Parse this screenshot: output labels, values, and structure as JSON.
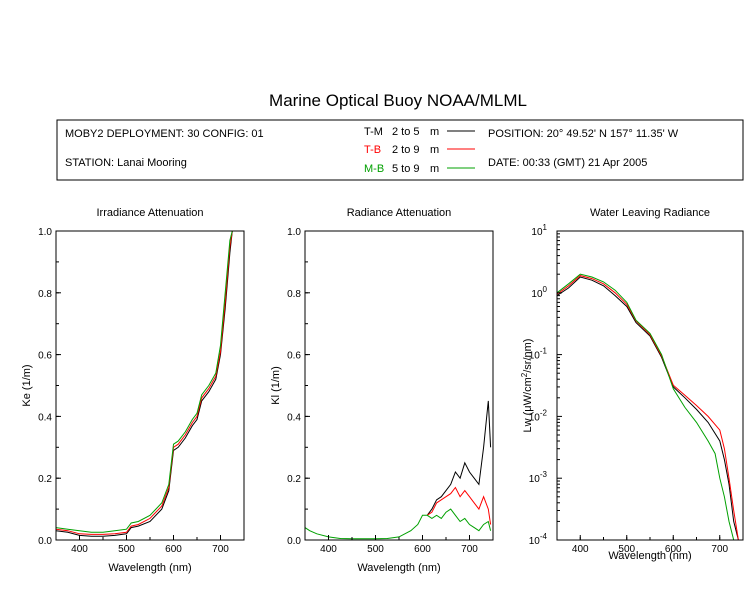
{
  "page": {
    "title": "Marine Optical Buoy NOAA/MLML"
  },
  "header": {
    "deployment": "MOBY2 DEPLOYMENT: 30 CONFIG: 01",
    "station": "STATION: Lanai Mooring",
    "position": "POSITION: 20° 49.52' N   157° 11.35' W",
    "date": "DATE: 00:33 (GMT) 21 Apr 2005",
    "depth_legend": [
      {
        "code": "T-M",
        "range": "2 to 5",
        "unit": "m",
        "color": "#000000"
      },
      {
        "code": "T-B",
        "range": "2 to 9",
        "unit": "m",
        "color": "#ff0000"
      },
      {
        "code": "M-B",
        "range": "5 to 9",
        "unit": "m",
        "color": "#00a000"
      }
    ]
  },
  "chart_data": [
    {
      "type": "line",
      "title": "Irradiance Attenuation",
      "xlabel": "Wavelength (nm)",
      "ylabel": "Ke  (1/m)",
      "xlim": [
        350,
        750
      ],
      "ylim": [
        0,
        1.0
      ],
      "xticks": [
        "400",
        "500",
        "600",
        "700"
      ],
      "yticks": [
        "0.0",
        "0.2",
        "0.4",
        "0.6",
        "0.8",
        "1.0"
      ],
      "series": [
        {
          "name": "T-M",
          "color": "#000000",
          "x": [
            350,
            375,
            400,
            425,
            450,
            475,
            500,
            510,
            525,
            550,
            575,
            590,
            600,
            610,
            625,
            640,
            650,
            660,
            675,
            690,
            700,
            710,
            720,
            725
          ],
          "y": [
            0.03,
            0.025,
            0.015,
            0.012,
            0.012,
            0.015,
            0.02,
            0.04,
            0.045,
            0.06,
            0.1,
            0.16,
            0.29,
            0.3,
            0.33,
            0.37,
            0.39,
            0.45,
            0.48,
            0.52,
            0.6,
            0.75,
            0.93,
            1.0
          ]
        },
        {
          "name": "T-B",
          "color": "#ff0000",
          "x": [
            350,
            375,
            400,
            425,
            450,
            475,
            500,
            510,
            525,
            550,
            575,
            590,
            600,
            610,
            625,
            640,
            650,
            660,
            675,
            690,
            700,
            710,
            720,
            725
          ],
          "y": [
            0.035,
            0.03,
            0.02,
            0.018,
            0.018,
            0.02,
            0.025,
            0.045,
            0.05,
            0.07,
            0.11,
            0.17,
            0.3,
            0.31,
            0.34,
            0.38,
            0.4,
            0.46,
            0.49,
            0.53,
            0.61,
            0.77,
            0.95,
            1.0
          ]
        },
        {
          "name": "M-B",
          "color": "#00a000",
          "x": [
            350,
            375,
            400,
            425,
            450,
            475,
            500,
            510,
            525,
            550,
            575,
            590,
            600,
            610,
            625,
            640,
            650,
            660,
            675,
            690,
            700,
            710,
            720,
            725
          ],
          "y": [
            0.04,
            0.035,
            0.03,
            0.025,
            0.025,
            0.03,
            0.035,
            0.055,
            0.06,
            0.08,
            0.12,
            0.18,
            0.31,
            0.32,
            0.35,
            0.39,
            0.41,
            0.47,
            0.5,
            0.54,
            0.63,
            0.8,
            0.97,
            1.0
          ]
        }
      ]
    },
    {
      "type": "line",
      "title": "Radiance Attenuation",
      "xlabel": "Wavelength (nm)",
      "ylabel": "Kl  (1/m)",
      "xlim": [
        350,
        750
      ],
      "ylim": [
        0,
        1.0
      ],
      "xticks": [
        "400",
        "500",
        "600",
        "700"
      ],
      "yticks": [
        "0.0",
        "0.2",
        "0.4",
        "0.6",
        "0.8",
        "1.0"
      ],
      "series": [
        {
          "name": "T-M",
          "color": "#000000",
          "x": [
            610,
            620,
            630,
            640,
            650,
            660,
            670,
            680,
            690,
            700,
            710,
            720,
            730,
            740,
            745
          ],
          "y": [
            0.08,
            0.1,
            0.13,
            0.14,
            0.16,
            0.18,
            0.22,
            0.2,
            0.25,
            0.22,
            0.2,
            0.18,
            0.3,
            0.45,
            0.3
          ]
        },
        {
          "name": "T-B",
          "color": "#ff0000",
          "x": [
            610,
            620,
            630,
            640,
            650,
            660,
            670,
            680,
            690,
            700,
            710,
            720,
            730,
            740,
            745
          ],
          "y": [
            0.08,
            0.09,
            0.12,
            0.13,
            0.14,
            0.15,
            0.17,
            0.14,
            0.16,
            0.14,
            0.12,
            0.1,
            0.14,
            0.1,
            0.05
          ]
        },
        {
          "name": "M-B",
          "color": "#00a000",
          "x": [
            350,
            360,
            375,
            400,
            425,
            450,
            475,
            500,
            525,
            550,
            575,
            590,
            600,
            610,
            620,
            630,
            640,
            650,
            660,
            670,
            680,
            690,
            700,
            710,
            720,
            730,
            740,
            745
          ],
          "y": [
            0.04,
            0.03,
            0.02,
            0.01,
            0.005,
            0.004,
            0.004,
            0.004,
            0.005,
            0.01,
            0.03,
            0.05,
            0.08,
            0.08,
            0.07,
            0.08,
            0.07,
            0.09,
            0.1,
            0.08,
            0.06,
            0.07,
            0.05,
            0.04,
            0.03,
            0.05,
            0.06,
            0.03
          ]
        }
      ]
    },
    {
      "type": "line",
      "title": "Water Leaving Radiance",
      "xlabel": "Wavelength (nm)",
      "ylabel_base": "Lw  (μW/cm",
      "ylabel_sup": "2",
      "ylabel_tail": "/sr/nm)",
      "xlim": [
        350,
        750
      ],
      "y_log10_range": [
        -4,
        1
      ],
      "xticks": [
        "400",
        "500",
        "600",
        "700"
      ],
      "yticks": [
        {
          "base": "10",
          "exp": "1"
        },
        {
          "base": "10",
          "exp": "0"
        },
        {
          "base": "10",
          "exp": "-1"
        },
        {
          "base": "10",
          "exp": "-2"
        },
        {
          "base": "10",
          "exp": "-3"
        },
        {
          "base": "10",
          "exp": "-4"
        }
      ],
      "series": [
        {
          "name": "T-M",
          "color": "#000000",
          "x": [
            350,
            375,
            400,
            425,
            450,
            475,
            500,
            520,
            550,
            575,
            600,
            625,
            650,
            675,
            700,
            710,
            720,
            730,
            740
          ],
          "y": [
            0.9,
            1.2,
            1.8,
            1.6,
            1.3,
            0.9,
            0.6,
            0.33,
            0.2,
            0.09,
            0.03,
            0.02,
            0.013,
            0.008,
            0.004,
            0.002,
            0.0008,
            0.0002,
            0.0001
          ]
        },
        {
          "name": "T-B",
          "color": "#ff0000",
          "x": [
            350,
            375,
            400,
            425,
            450,
            475,
            500,
            520,
            550,
            575,
            600,
            625,
            650,
            675,
            700,
            710,
            720,
            730,
            740
          ],
          "y": [
            0.95,
            1.3,
            1.9,
            1.7,
            1.4,
            1.0,
            0.65,
            0.35,
            0.21,
            0.095,
            0.032,
            0.022,
            0.015,
            0.01,
            0.006,
            0.003,
            0.001,
            0.0003,
            0.0001
          ]
        },
        {
          "name": "M-B",
          "color": "#00a000",
          "x": [
            350,
            375,
            400,
            425,
            450,
            475,
            500,
            520,
            550,
            575,
            600,
            625,
            650,
            675,
            690,
            700,
            710,
            720,
            730,
            740
          ],
          "y": [
            1.0,
            1.4,
            2.0,
            1.8,
            1.5,
            1.1,
            0.7,
            0.36,
            0.22,
            0.1,
            0.028,
            0.014,
            0.008,
            0.004,
            0.0025,
            0.001,
            0.0005,
            0.0002,
            0.0001,
            0.0001
          ]
        }
      ]
    }
  ]
}
